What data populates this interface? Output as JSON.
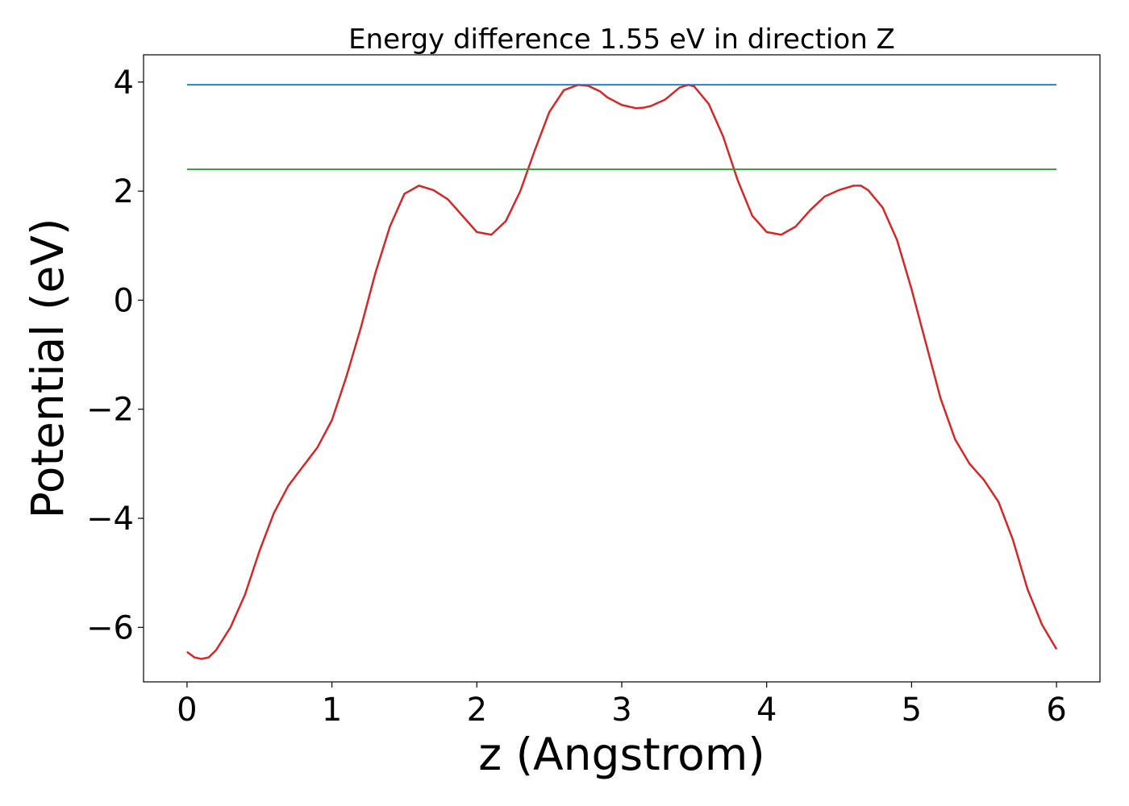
{
  "chart_data": {
    "type": "line",
    "title": "Energy difference 1.55 eV in direction Z",
    "xlabel": "z (Angstrom)",
    "ylabel": "Potential (eV)",
    "xlim": [
      -0.3,
      6.3
    ],
    "ylim": [
      -7.0,
      4.5
    ],
    "xticks": [
      0,
      1,
      2,
      3,
      4,
      5,
      6
    ],
    "xtick_labels": [
      "0",
      "1",
      "2",
      "3",
      "4",
      "5",
      "6"
    ],
    "yticks": [
      -6,
      -4,
      -2,
      0,
      2,
      4
    ],
    "ytick_labels": [
      "−6",
      "−4",
      "−2",
      "0",
      "2",
      "4"
    ],
    "grid": false,
    "series": [
      {
        "color": "#d62728",
        "x": [
          0.0,
          0.05,
          0.1,
          0.15,
          0.2,
          0.3,
          0.4,
          0.5,
          0.6,
          0.7,
          0.8,
          0.9,
          1.0,
          1.1,
          1.2,
          1.3,
          1.4,
          1.5,
          1.6,
          1.7,
          1.8,
          1.9,
          2.0,
          2.1,
          2.2,
          2.3,
          2.4,
          2.5,
          2.6,
          2.7,
          2.77,
          2.85,
          2.9,
          3.0,
          3.1,
          3.15,
          3.2,
          3.3,
          3.4,
          3.46,
          3.5,
          3.6,
          3.7,
          3.8,
          3.9,
          4.0,
          4.1,
          4.2,
          4.3,
          4.4,
          4.5,
          4.6,
          4.65,
          4.7,
          4.8,
          4.9,
          5.0,
          5.1,
          5.2,
          5.3,
          5.4,
          5.5,
          5.6,
          5.7,
          5.8,
          5.9,
          6.0
        ],
        "y": [
          -6.45,
          -6.55,
          -6.58,
          -6.55,
          -6.42,
          -6.0,
          -5.4,
          -4.6,
          -3.9,
          -3.4,
          -3.05,
          -2.7,
          -2.2,
          -1.4,
          -0.5,
          0.5,
          1.35,
          1.95,
          2.1,
          2.02,
          1.85,
          1.55,
          1.25,
          1.2,
          1.45,
          2.0,
          2.75,
          3.45,
          3.85,
          3.95,
          3.93,
          3.83,
          3.72,
          3.58,
          3.52,
          3.53,
          3.56,
          3.68,
          3.9,
          3.95,
          3.92,
          3.6,
          3.0,
          2.2,
          1.55,
          1.25,
          1.2,
          1.35,
          1.65,
          1.9,
          2.02,
          2.1,
          2.1,
          2.02,
          1.7,
          1.1,
          0.2,
          -0.8,
          -1.8,
          -2.55,
          -3.0,
          -3.3,
          -3.7,
          -4.4,
          -5.3,
          -5.95,
          -6.4
        ]
      },
      {
        "color": "#1f77b4",
        "x": [
          0.0,
          6.0
        ],
        "y": [
          3.95,
          3.95
        ]
      },
      {
        "color": "#2ca02c",
        "x": [
          0.0,
          6.0
        ],
        "y": [
          2.4,
          2.4
        ]
      }
    ]
  }
}
